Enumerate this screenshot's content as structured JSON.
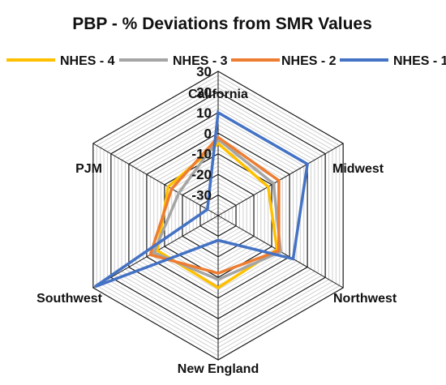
{
  "chart_data": {
    "type": "radar",
    "title": "PBP - % Deviations from SMR Values",
    "categories": [
      "California",
      "Midwest",
      "Northwest",
      "New England",
      "Southwest",
      "PJM"
    ],
    "axis_ticks": [
      30,
      20,
      10,
      0,
      -10,
      -20,
      -30
    ],
    "rlim": [
      -40,
      30
    ],
    "minor_step": 2,
    "legend_position": "top",
    "series": [
      {
        "name": "NHES - 4",
        "color": "#FFC000",
        "values": [
          -5,
          -12,
          -7,
          -5,
          -6,
          -12
        ]
      },
      {
        "name": "NHES - 3",
        "color": "#A5A5A5",
        "values": [
          -3,
          -9,
          -5,
          -9,
          -4,
          -18
        ]
      },
      {
        "name": "NHES - 2",
        "color": "#ED7D31",
        "values": [
          -2,
          -6,
          -6,
          -12,
          -2,
          -14
        ]
      },
      {
        "name": "NHES - 1",
        "color": "#4472C4",
        "values": [
          10,
          10,
          2,
          -28,
          29,
          -34
        ]
      }
    ]
  }
}
